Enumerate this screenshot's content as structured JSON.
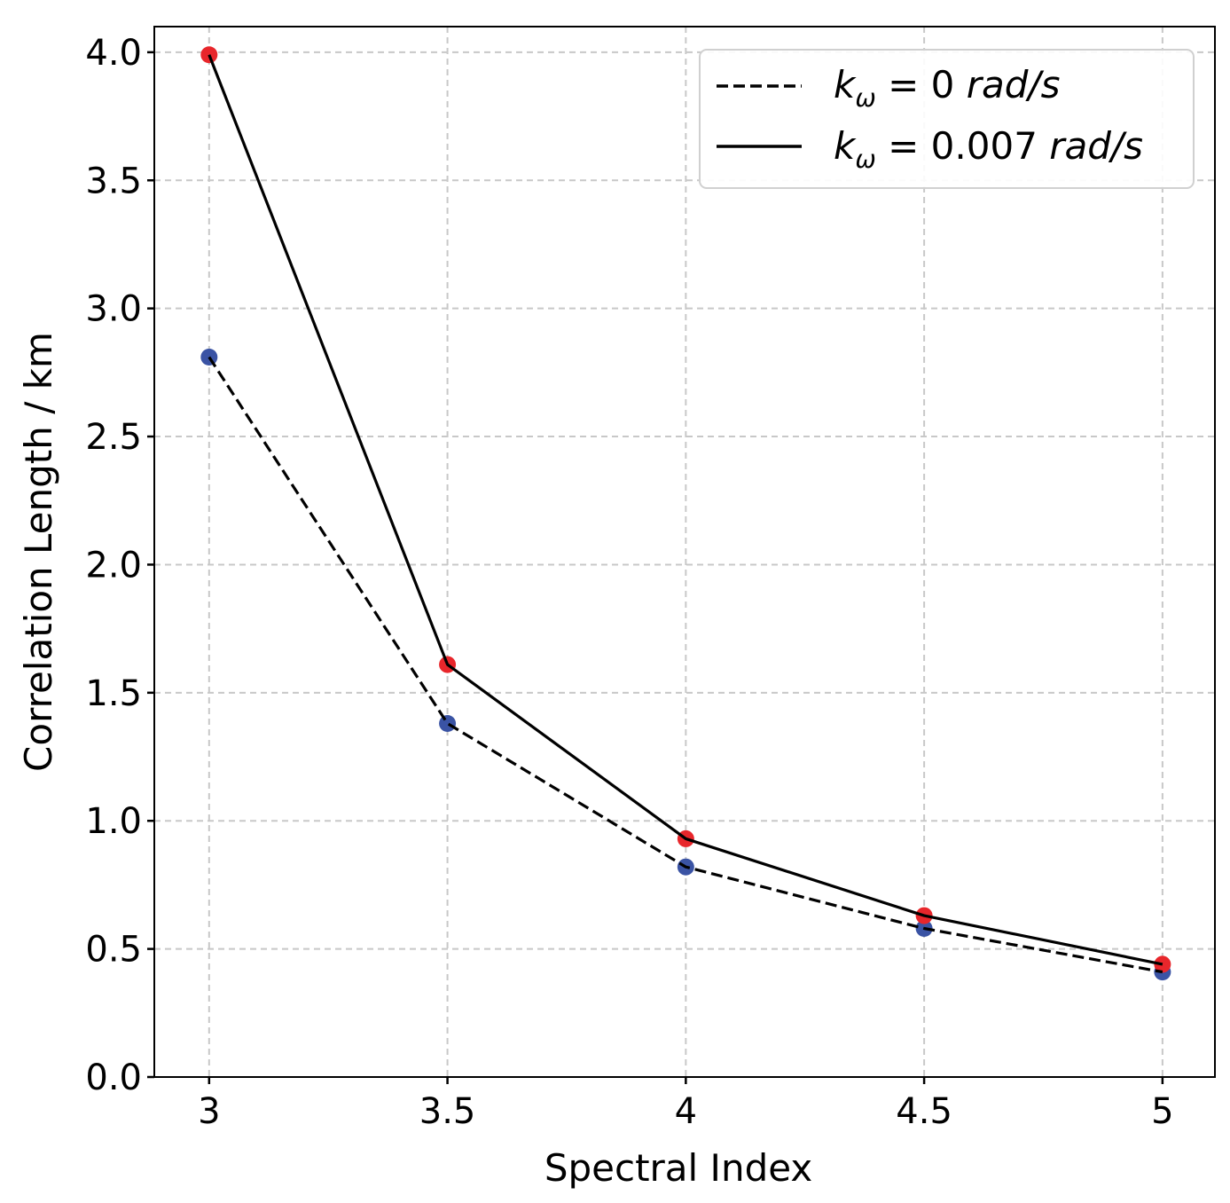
{
  "chart_data": {
    "type": "line",
    "title": "",
    "xlabel": "Spectral Index",
    "ylabel": "Correlation Length / km",
    "x": [
      3,
      3.5,
      4,
      4.5,
      5
    ],
    "x_tick_labels": [
      "3",
      "3.5",
      "4",
      "4.5",
      "5"
    ],
    "y_ticks": [
      0.0,
      0.5,
      1.0,
      1.5,
      2.0,
      2.5,
      3.0,
      3.5,
      4.0
    ],
    "y_tick_labels": [
      "0.0",
      "0.5",
      "1.0",
      "1.5",
      "2.0",
      "2.5",
      "3.0",
      "3.5",
      "4.0"
    ],
    "xlim": [
      2.885,
      5.11
    ],
    "ylim": [
      0.0,
      4.1
    ],
    "grid": true,
    "legend_position": "top-right",
    "series": [
      {
        "name": "k_ω = 0 rad/s",
        "legend": {
          "var": "k",
          "sub": "ω",
          "eq": " = 0 ",
          "unit": "rad/s"
        },
        "style": "dashed",
        "line_color": "#000000",
        "marker_color": "#3a53a4",
        "values": [
          2.81,
          1.38,
          0.82,
          0.58,
          0.41
        ]
      },
      {
        "name": "k_ω = 0.007 rad/s",
        "legend": {
          "var": "k",
          "sub": "ω",
          "eq": " = 0.007 ",
          "unit": "rad/s"
        },
        "style": "solid",
        "line_color": "#000000",
        "marker_color": "#e8262b",
        "values": [
          3.99,
          1.61,
          0.93,
          0.63,
          0.44
        ]
      }
    ]
  },
  "colors": {
    "grid": "#c8c8c8",
    "axis": "#000000",
    "legend_border": "#d0d0d0"
  }
}
